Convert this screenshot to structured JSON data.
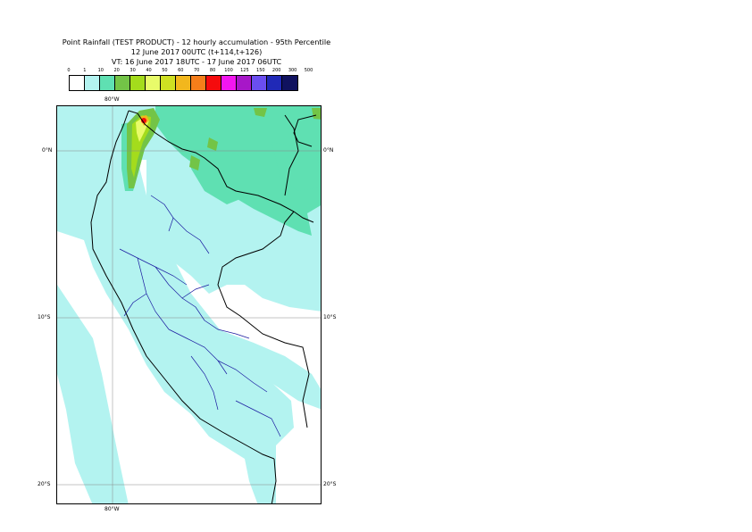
{
  "title": {
    "line1": "Point Rainfall (TEST PRODUCT) - 12 hourly accumulation - 95th Percentile",
    "line2": "12 June 2017 00UTC (t+114,t+126)",
    "line3": "VT: 16 June 2017 18UTC - 17 June 2017 06UTC"
  },
  "legend": {
    "labels": [
      "0",
      "1",
      "10",
      "20",
      "30",
      "40",
      "50",
      "60",
      "70",
      "80",
      "100",
      "125",
      "150",
      "200",
      "300",
      "500"
    ],
    "colors": [
      "#ffffff",
      "#b3f3f0",
      "#5fe0b2",
      "#73c447",
      "#a4dc1c",
      "#e8fb6a",
      "#cfe022",
      "#f2b71d",
      "#f57e1a",
      "#f50b0d",
      "#f316f0",
      "#a717c8",
      "#6a4ef0",
      "#2029b7",
      "#10125f"
    ]
  },
  "axes": {
    "lon_top": "80°W",
    "lon_bottom": "80°W",
    "lat_labels": [
      "0°N",
      "10°S",
      "20°S"
    ]
  },
  "colors": {
    "ocean_light": "#b3f3f0",
    "rain_medium": "#5fe0b2",
    "borders": "#000000",
    "internal_borders": "#1a1aa0"
  }
}
